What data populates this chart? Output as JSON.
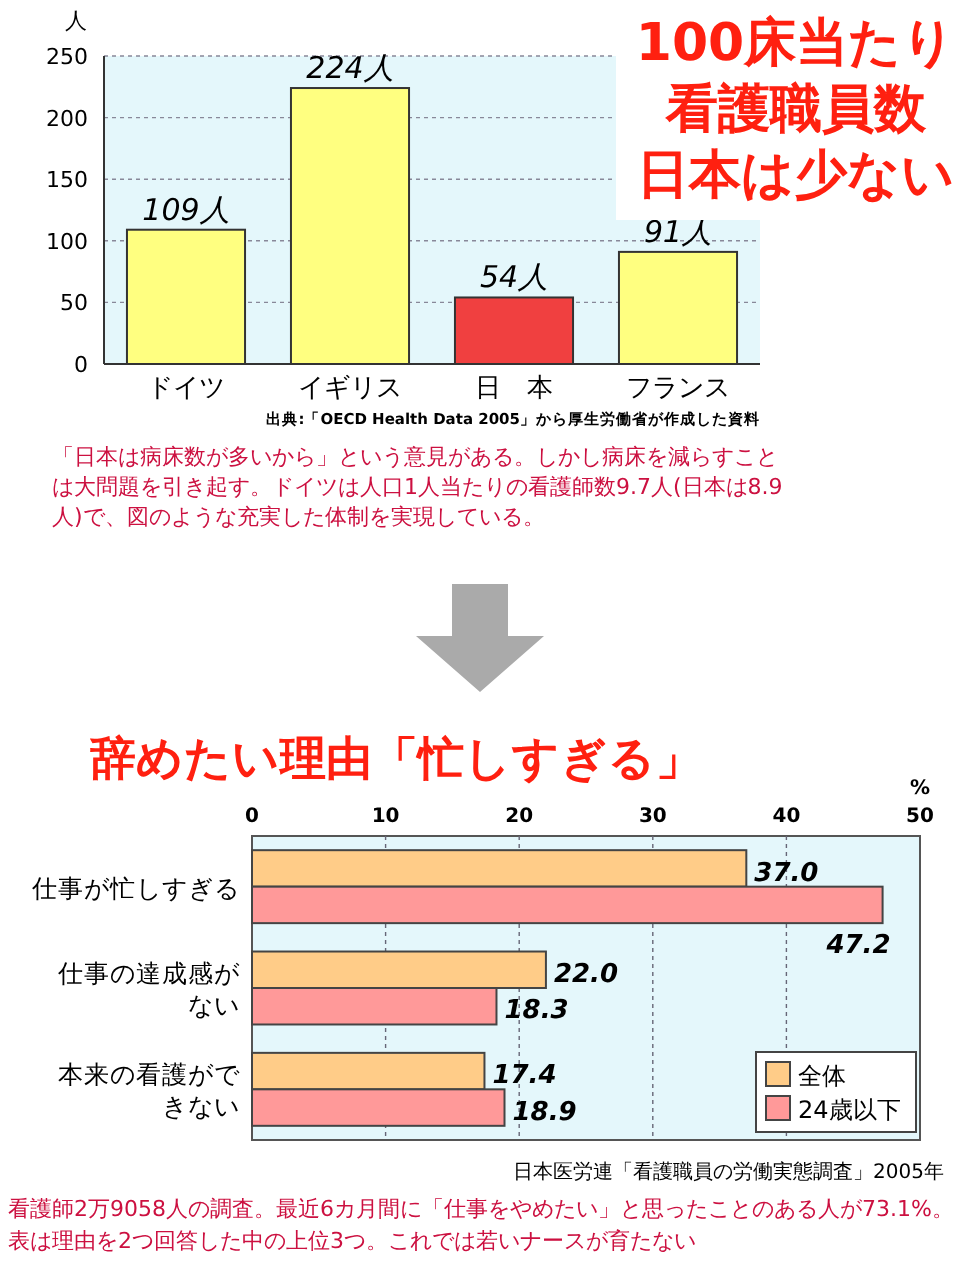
{
  "chart_data": [
    {
      "type": "bar",
      "title": "100床当たり看護職員数",
      "subtitle": "日本は少ない",
      "ylabel": "人",
      "categories": [
        "ドイツ",
        "イギリス",
        "日　本",
        "フランス"
      ],
      "values": [
        109,
        224,
        54,
        91
      ],
      "colors": [
        "#ffff80",
        "#ffff80",
        "#f04040",
        "#ffff80"
      ],
      "value_labels": [
        "109人",
        "224人",
        "54人",
        "91人"
      ],
      "ylim": [
        0,
        250
      ],
      "yticks": [
        0,
        50,
        100,
        150,
        200,
        250
      ],
      "grid": "y",
      "annotations": [
        "出典:「OECD Health Data 2005」から厚生労働省が作成した資料",
        "「日本は病床数が多いから」という意見がある。しかし病床を減らすことは大問題を引き起す。ドイツは人口1人当たりの看護師数9.7人(日本は8.9人)で、図のような充実した体制を実現している。"
      ]
    },
    {
      "type": "bar",
      "orientation": "horizontal",
      "title": "辞めたい理由「忙しすぎる」",
      "xlabel": "%",
      "categories": [
        "仕事が忙しすぎる",
        "仕事の達成感がない",
        "本来の看護ができない"
      ],
      "series": [
        {
          "name": "全体",
          "color": "#ffcc88",
          "values": [
            37.0,
            22.0,
            17.4
          ],
          "value_labels": [
            "37.0",
            "22.0",
            "17.4"
          ]
        },
        {
          "name": "24歳以下",
          "color": "#ff9999",
          "values": [
            47.2,
            18.3,
            18.9
          ],
          "value_labels": [
            "47.2",
            "18.3",
            "18.9"
          ]
        }
      ],
      "xlim": [
        0,
        50
      ],
      "xticks": [
        0,
        10,
        20,
        30,
        40,
        50
      ],
      "grid": "x",
      "legend": "bottom right",
      "annotations": [
        "日本医労連「看護職員の労働実態調査」2005年",
        "看護師2万9058人の調査。最近6カ月間に「仕事をやめたい」と思ったことのある人が73.1%。表は理由を2つ回答した中の上位3つ。これでは若いナースが育たない"
      ]
    }
  ]
}
